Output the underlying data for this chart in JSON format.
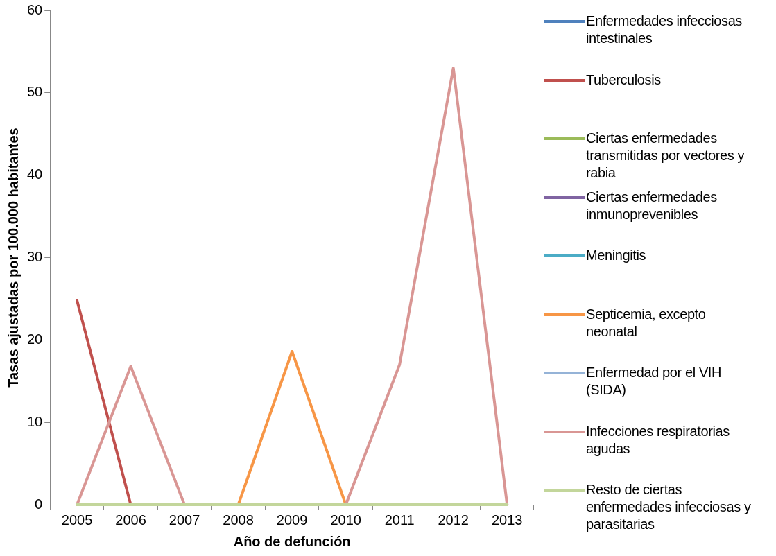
{
  "chart_data": {
    "type": "line",
    "xlabel": "Año de defunción",
    "ylabel": "Tasas ajustadas por 100.000 habitantes",
    "categories": [
      "2005",
      "2006",
      "2007",
      "2008",
      "2009",
      "2010",
      "2011",
      "2012",
      "2013"
    ],
    "ylim": [
      0,
      60
    ],
    "yticks": [
      0,
      10,
      20,
      30,
      40,
      50,
      60
    ],
    "grid": false,
    "legend": "right",
    "marker": "none",
    "line_style": "solid",
    "series": [
      {
        "name": "Enfermedades infecciosas intestinales",
        "color": "#4f81bd",
        "values": [
          null,
          null,
          null,
          null,
          null,
          null,
          null,
          null,
          null
        ]
      },
      {
        "name": "Tuberculosis",
        "color": "#c0504d",
        "values": [
          24.8,
          0,
          null,
          null,
          null,
          null,
          null,
          null,
          null
        ]
      },
      {
        "name": "Ciertas enfermedades transmitidas por vectores y rabia",
        "color": "#9bbb59",
        "values": [
          null,
          null,
          null,
          null,
          null,
          null,
          null,
          null,
          null
        ]
      },
      {
        "name": "Ciertas enfermedades inmunoprevenibles",
        "color": "#8064a2",
        "values": [
          null,
          null,
          null,
          null,
          null,
          null,
          null,
          null,
          null
        ]
      },
      {
        "name": "Meningitis",
        "color": "#4bacc6",
        "values": [
          null,
          null,
          null,
          null,
          null,
          null,
          null,
          null,
          null
        ]
      },
      {
        "name": "Septicemia, excepto neonatal",
        "color": "#f79646",
        "values": [
          null,
          null,
          null,
          0,
          18.6,
          0,
          null,
          null,
          null
        ]
      },
      {
        "name": "Enfermedad por el VIH (SIDA)",
        "color": "#95b3d7",
        "values": [
          null,
          null,
          null,
          null,
          null,
          null,
          null,
          null,
          null
        ]
      },
      {
        "name": "Infecciones respiratorias agudas",
        "color": "#d99694",
        "values": [
          0,
          16.8,
          0,
          null,
          null,
          0,
          17,
          53,
          0
        ]
      },
      {
        "name": "Resto de ciertas enfermedades infecciosas y parasitarias",
        "color": "#c3d69b",
        "values": [
          0,
          0,
          0,
          0,
          0,
          0,
          0,
          0,
          0
        ]
      }
    ]
  }
}
